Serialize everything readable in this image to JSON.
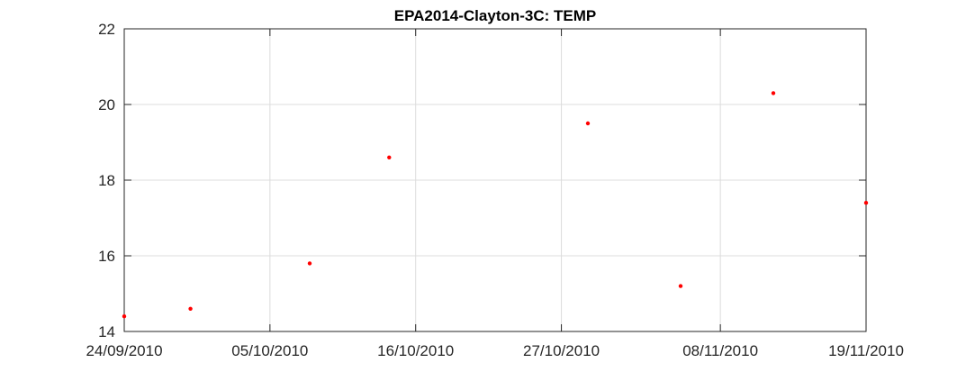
{
  "chart_data": {
    "type": "scatter",
    "title": "EPA2014-Clayton-3C: TEMP",
    "xlabel": "",
    "ylabel": "",
    "xlim": [
      "2010-09-24",
      "2010-11-19"
    ],
    "ylim": [
      14,
      22
    ],
    "x_ticks": [
      "24/09/2010",
      "05/10/2010",
      "16/10/2010",
      "27/10/2010",
      "08/11/2010",
      "19/11/2010"
    ],
    "x_tick_dates": [
      "2010-09-24",
      "2010-10-05",
      "2010-10-16",
      "2010-10-27",
      "2010-11-08",
      "2010-11-19"
    ],
    "y_ticks": [
      14,
      16,
      18,
      20,
      22
    ],
    "grid": true,
    "marker_color": "#ff0000",
    "points": [
      {
        "x": "2010-09-24",
        "y": 14.4
      },
      {
        "x": "2010-09-29",
        "y": 14.6
      },
      {
        "x": "2010-10-08",
        "y": 15.8
      },
      {
        "x": "2010-10-14",
        "y": 18.6
      },
      {
        "x": "2010-10-29",
        "y": 19.5
      },
      {
        "x": "2010-11-05",
        "y": 15.2
      },
      {
        "x": "2010-11-12",
        "y": 20.3
      },
      {
        "x": "2010-11-19",
        "y": 17.4
      }
    ]
  }
}
